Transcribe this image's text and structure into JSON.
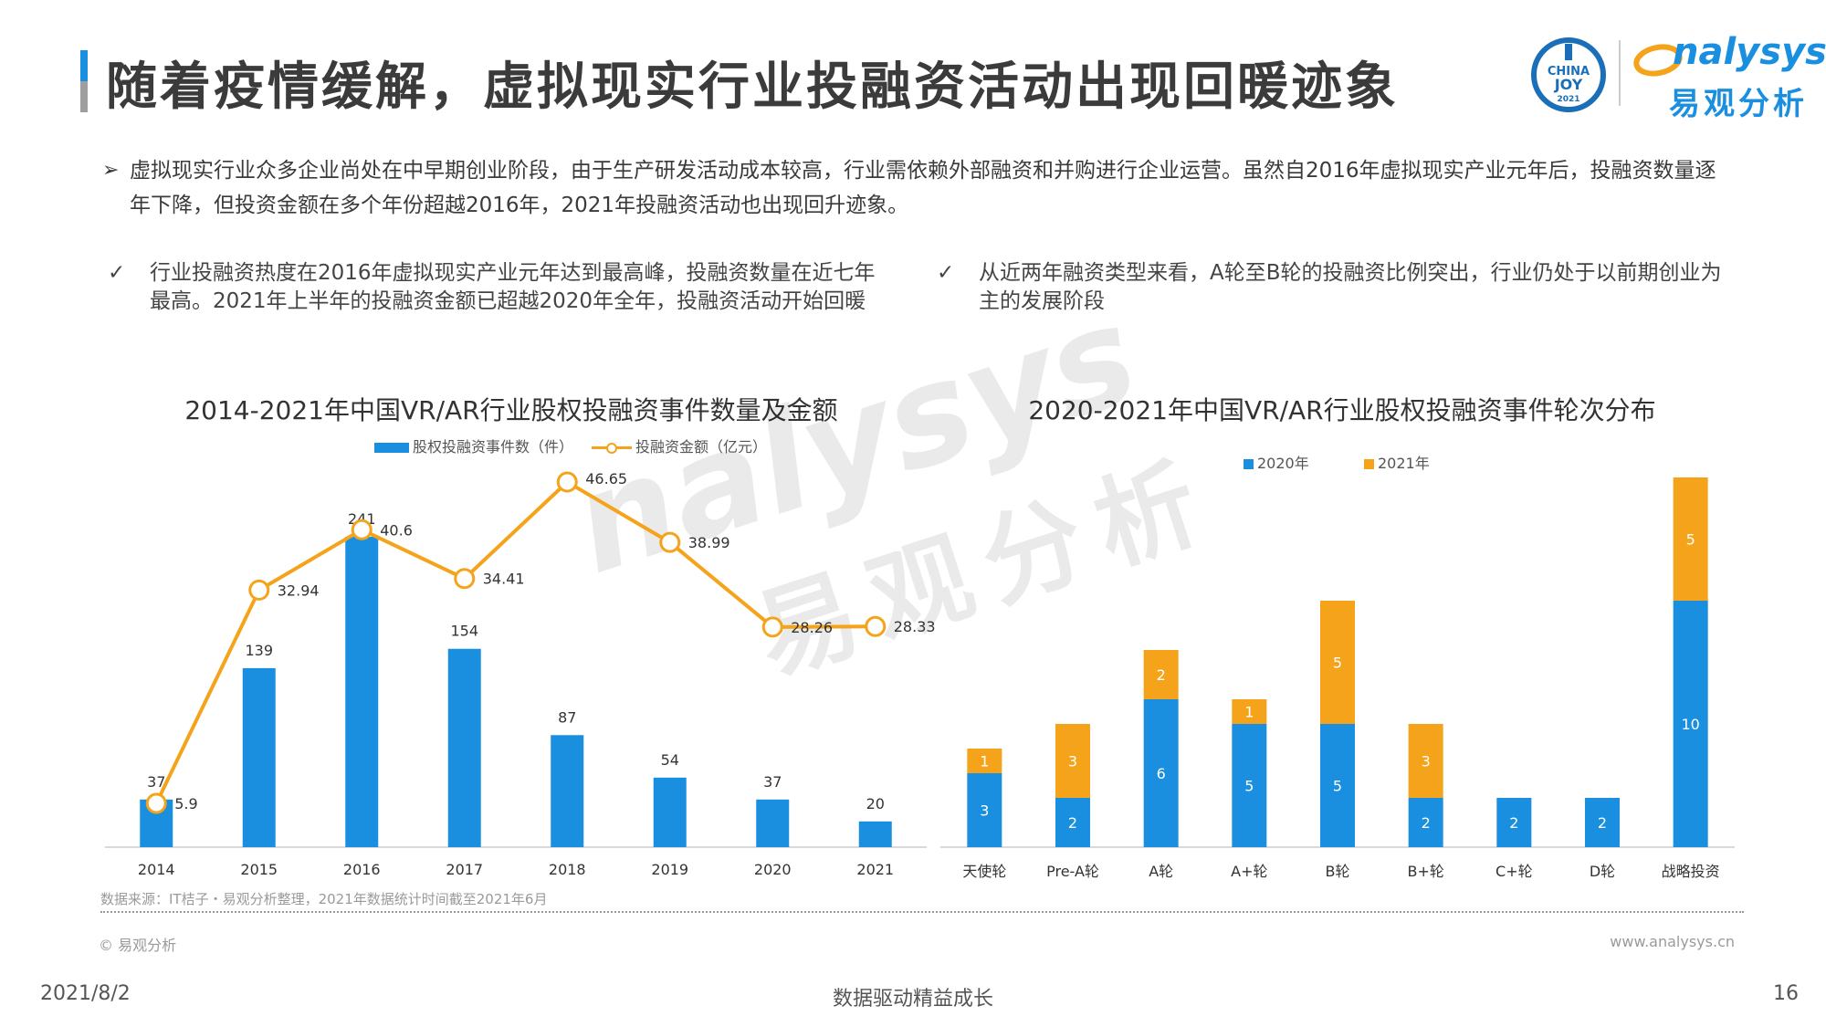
{
  "header": {
    "title": "随着疫情缓解，虚拟现实行业投融资活动出现回暖迹象",
    "logo_china": "CHINA",
    "logo_joy": "JOY",
    "logo_year": "2021",
    "brand_en": "nalysys",
    "brand_cn": "易观分析"
  },
  "intro": {
    "arrow": "➢",
    "text": "虚拟现实行业众多企业尚处在中早期创业阶段，由于生产研发活动成本较高，行业需依赖外部融资和并购进行企业运营。虽然自2016年虚拟现实产业元年后，投融资数量逐年下降，但投资金额在多个年份超越2016年，2021年投融资活动也出现回升迹象。"
  },
  "points": [
    {
      "check": "✓",
      "text": "行业投融资热度在2016年虚拟现实产业元年达到最高峰，投融资数量在近七年最高。2021年上半年的投融资金额已超越2020年全年，投融资活动开始回暖"
    },
    {
      "check": "✓",
      "text": "从近两年融资类型来看，A轮至B轮的投融资比例突出，行业仍处于以前期创业为主的发展阶段"
    }
  ],
  "watermark": {
    "en": "nalysys",
    "cn": "易观分析"
  },
  "chart_data": [
    {
      "type": "bar",
      "title": "2014-2021年中国VR/AR行业股权投融资事件数量及金额",
      "categories": [
        "2014",
        "2015",
        "2016",
        "2017",
        "2018",
        "2019",
        "2020",
        "2021"
      ],
      "series": [
        {
          "name": "股权投融资事件数（件）",
          "type": "bar",
          "color": "#1a8fe0",
          "values": [
            37,
            139,
            241,
            154,
            87,
            54,
            37,
            20
          ]
        },
        {
          "name": "投融资金额（亿元）",
          "type": "line",
          "color": "#f5a31a",
          "values": [
            5.9,
            32.94,
            40.6,
            34.41,
            46.65,
            38.99,
            28.26,
            28.33
          ]
        }
      ],
      "legend": "top",
      "grid": false,
      "source": "数据来源：IT桔子・易观分析整理，2021年数据统计时间截至2021年6月"
    },
    {
      "type": "bar",
      "stacked": true,
      "title": "2020-2021年中国VR/AR行业股权投融资事件轮次分布",
      "categories": [
        "天使轮",
        "Pre-A轮",
        "A轮",
        "A+轮",
        "B轮",
        "B+轮",
        "C+轮",
        "D轮",
        "战略投资"
      ],
      "series": [
        {
          "name": "2020年",
          "color": "#1a8fe0",
          "values": [
            3,
            2,
            6,
            5,
            5,
            2,
            2,
            2,
            10
          ]
        },
        {
          "name": "2021年",
          "color": "#f5a31a",
          "values": [
            1,
            3,
            2,
            1,
            5,
            3,
            null,
            null,
            5
          ]
        }
      ],
      "legend": "top",
      "grid": false
    }
  ],
  "footer": {
    "copyright": "© 易观分析",
    "website": "www.analysys.cn",
    "date": "2021/8/2",
    "slogan": "数据驱动精益成长",
    "page": "16"
  },
  "colors": {
    "blue": "#1a8fe0",
    "orange": "#f5a31a",
    "title_bar_top": "#1a8fe0"
  }
}
